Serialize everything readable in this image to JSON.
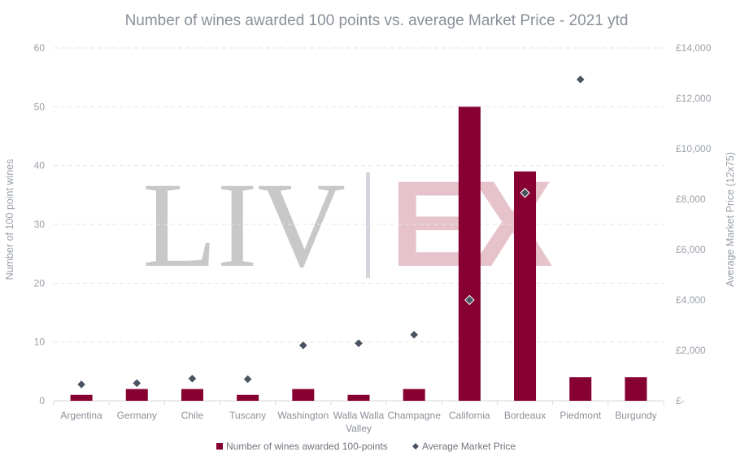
{
  "chart_data": {
    "type": "bar",
    "title": "Number of wines awarded 100 points vs. average Market Price - 2021 ytd",
    "categories": [
      [
        "Argentina"
      ],
      [
        "Germany"
      ],
      [
        "Chile"
      ],
      [
        "Tuscany"
      ],
      [
        "Washington"
      ],
      [
        "Walla Walla",
        "Valley"
      ],
      [
        "Champagne"
      ],
      [
        "California"
      ],
      [
        "Bordeaux"
      ],
      [
        "Piedmont"
      ],
      [
        "Burgundy"
      ]
    ],
    "series": [
      {
        "name": "Number of wines awarded 100-points",
        "type": "bar",
        "axis": "left",
        "color": "#870032",
        "values": [
          1,
          2,
          2,
          1,
          2,
          1,
          2,
          50,
          39,
          4,
          4
        ]
      },
      {
        "name": "Average Market Price",
        "type": "scatter",
        "axis": "right",
        "color": "#4a5360",
        "values": [
          650,
          700,
          880,
          860,
          2200,
          2280,
          2620,
          4000,
          8250,
          12750,
          null
        ]
      }
    ],
    "ylabel": "Number of 100 point wines",
    "y2label": "Average Market Price (12x75)",
    "ylim": [
      0,
      60
    ],
    "yticks": [
      "0",
      "10",
      "20",
      "30",
      "40",
      "50",
      "60"
    ],
    "y2lim": [
      0,
      14000
    ],
    "y2ticks": [
      "£-",
      "£2,000",
      "£4,000",
      "£6,000",
      "£8,000",
      "£10,000",
      "£12,000",
      "£14,000"
    ],
    "grid": true,
    "legend_position": "bottom",
    "watermark": {
      "left": "LIV",
      "right": "EX"
    }
  }
}
